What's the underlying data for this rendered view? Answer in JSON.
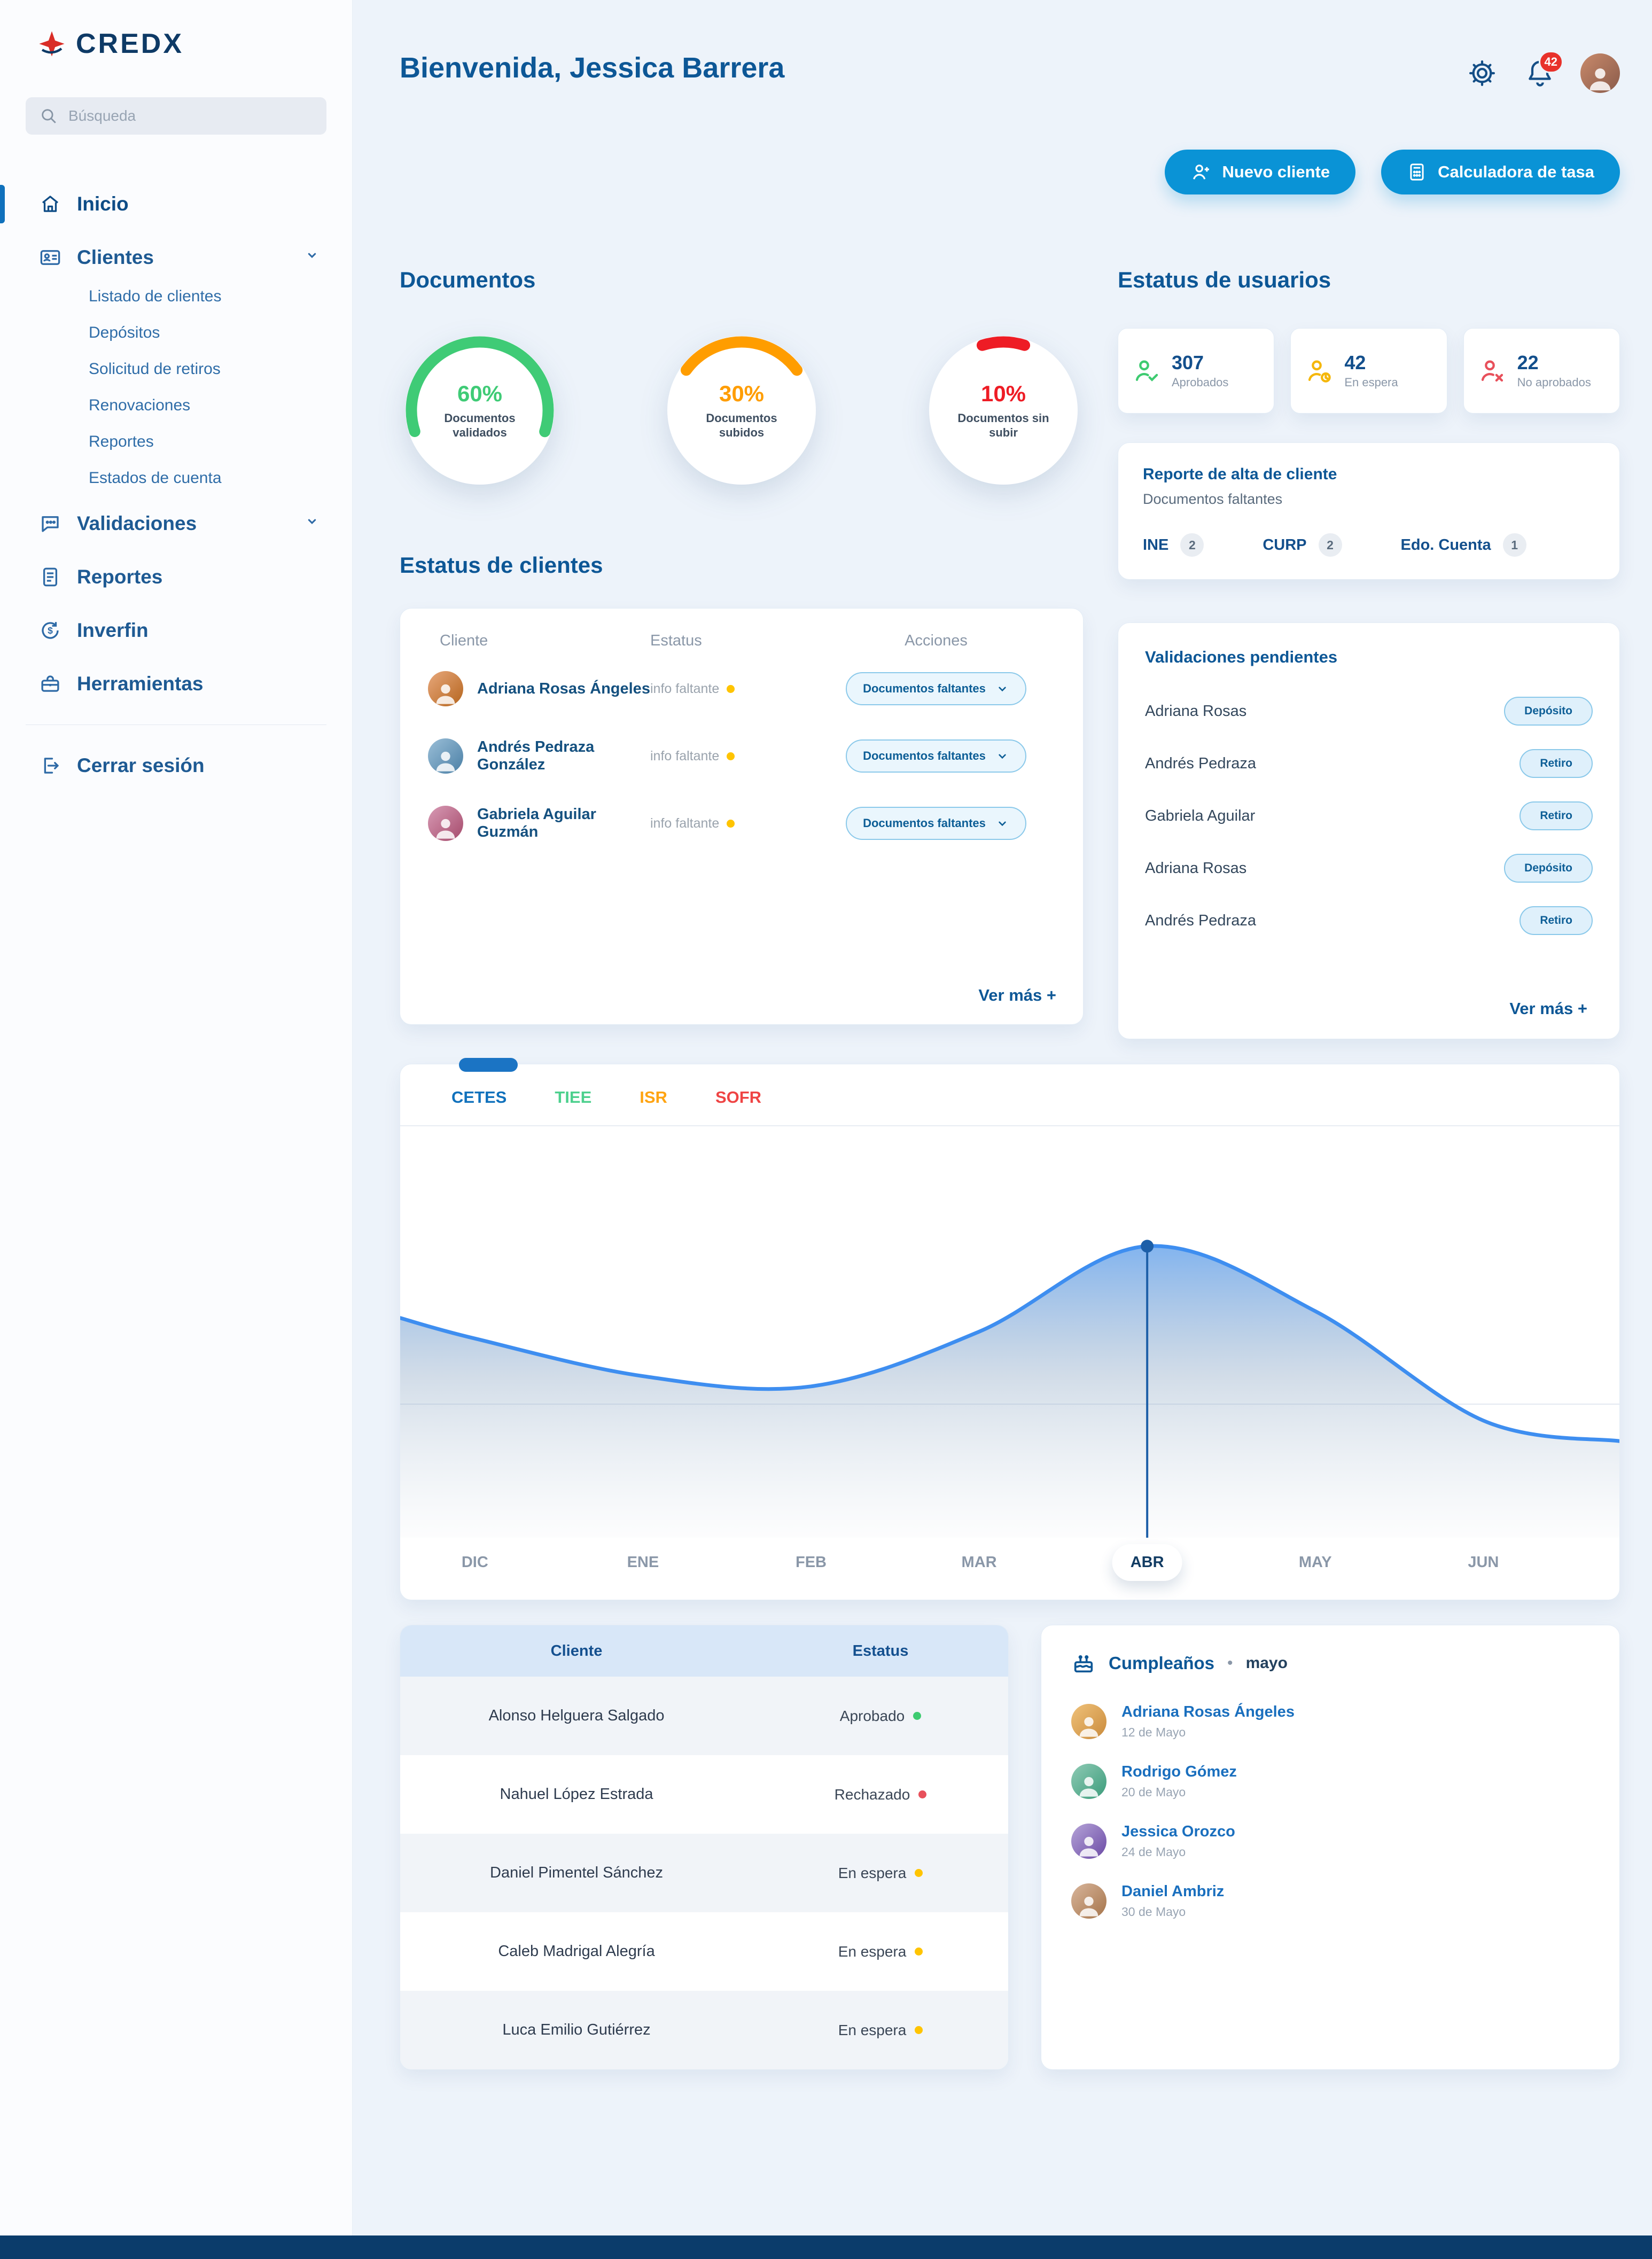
{
  "brand": {
    "name": "CREDX"
  },
  "sidebar": {
    "search": {
      "placeholder": "Búsqueda"
    },
    "inicio": "Inicio",
    "clientes": "Clientes",
    "clientes_children": [
      "Listado de clientes",
      "Depósitos",
      "Solicitud de retiros",
      "Renovaciones",
      "Reportes",
      "Estados de cuenta"
    ],
    "validaciones": "Validaciones",
    "reportes": "Reportes",
    "inverfin": "Inverfin",
    "herramientas": "Herramientas",
    "cerrar_sesion": "Cerrar sesión"
  },
  "header": {
    "greeting": "Bienvenida,",
    "user_name": "Jessica Barrera",
    "notification_count": "42"
  },
  "quick_actions": {
    "new_client": "Nuevo cliente",
    "rate_calculator": "Calculadora de tasa"
  },
  "documents_section": {
    "title": "Documentos"
  },
  "user_status": {
    "title": "Estatus de usuarios",
    "cards": [
      {
        "value": "307",
        "label": "Aprobados",
        "key": "approved"
      },
      {
        "value": "42",
        "label": "En espera",
        "key": "waiting"
      },
      {
        "value": "22",
        "label": "No aprobados",
        "key": "rejected"
      }
    ],
    "report": {
      "title": "Reporte de alta de cliente",
      "subtitle": "Documentos faltantes",
      "items": [
        {
          "label": "INE",
          "count": "2"
        },
        {
          "label": "CURP",
          "count": "2"
        },
        {
          "label": "Edo. Cuenta",
          "count": "1"
        }
      ]
    }
  },
  "clients_status": {
    "title": "Estatus de clientes",
    "columns": [
      "Cliente",
      "Estatus",
      "Acciones"
    ],
    "rows": [
      {
        "name": "Adriana Rosas Ángeles",
        "status": "info faltante",
        "action": "Documentos faltantes"
      },
      {
        "name": "Andrés Pedraza González",
        "status": "info faltante",
        "action": "Documentos faltantes"
      },
      {
        "name": "Gabriela Aguilar Guzmán",
        "status": "info faltante",
        "action": "Documentos faltantes"
      }
    ],
    "see_more": "Ver más +"
  },
  "pending_validations": {
    "title": "Validaciones pendientes",
    "rows": [
      {
        "name": "Adriana Rosas",
        "action": "Depósito"
      },
      {
        "name": "Andrés Pedraza",
        "action": "Retiro"
      },
      {
        "name": "Gabriela Aguilar",
        "action": "Retiro"
      },
      {
        "name": "Adriana Rosas",
        "action": "Depósito"
      },
      {
        "name": "Andrés Pedraza",
        "action": "Retiro"
      }
    ],
    "see_more": "Ver más +"
  },
  "clients_table": {
    "columns": [
      "Cliente",
      "Estatus"
    ],
    "rows": [
      {
        "name": "Alonso Helguera Salgado",
        "status": "Aprobado",
        "status_key": "approved"
      },
      {
        "name": "Nahuel López Estrada",
        "status": "Rechazado",
        "status_key": "rejected"
      },
      {
        "name": "Daniel Pimentel Sánchez",
        "status": "En espera",
        "status_key": "waiting"
      },
      {
        "name": "Caleb Madrigal Alegría",
        "status": "En espera",
        "status_key": "waiting"
      },
      {
        "name": "Luca Emilio Gutiérrez",
        "status": "En espera",
        "status_key": "waiting"
      }
    ]
  },
  "birthdays": {
    "title": "Cumpleaños",
    "separator": "•",
    "month": "mayo",
    "items": [
      {
        "name": "Adriana Rosas Ángeles",
        "date": "12 de Mayo"
      },
      {
        "name": "Rodrigo Gómez",
        "date": "20 de Mayo"
      },
      {
        "name": "Jessica Orozco",
        "date": "24 de Mayo"
      },
      {
        "name": "Daniel Ambriz",
        "date": "30 de Mayo"
      }
    ]
  },
  "chart_data": [
    {
      "type": "donut",
      "title": "Documentos",
      "series": [
        {
          "label": "Documentos validados",
          "percent": 60,
          "percent_label": "60%",
          "color": "#3FCB76"
        },
        {
          "label": "Documentos subidos",
          "percent": 30,
          "percent_label": "30%",
          "color": "#FF9D00"
        },
        {
          "label": "Documentos sin subir",
          "percent": 10,
          "percent_label": "10%",
          "color": "#EE1C25"
        }
      ]
    },
    {
      "type": "area",
      "tabs": [
        {
          "label": "CETES",
          "color": "#1071BC",
          "active": true
        },
        {
          "label": "TIEE",
          "color": "#4CD08D",
          "active": false
        },
        {
          "label": "ISR",
          "color": "#FFA412",
          "active": false
        },
        {
          "label": "SOFR",
          "color": "#EF4444",
          "active": false
        }
      ],
      "x": [
        "DIC",
        "ENE",
        "FEB",
        "MAR",
        "ABR",
        "MAY",
        "JUN"
      ],
      "values": [
        52,
        41,
        38,
        54,
        79,
        60,
        28
      ],
      "selected_index": 4,
      "selected_label": "ABR",
      "line_color": "#3E8EF0",
      "marker_color": "#1D5FA8",
      "grid": "minimal",
      "legend_position": "top-tabs"
    }
  ]
}
